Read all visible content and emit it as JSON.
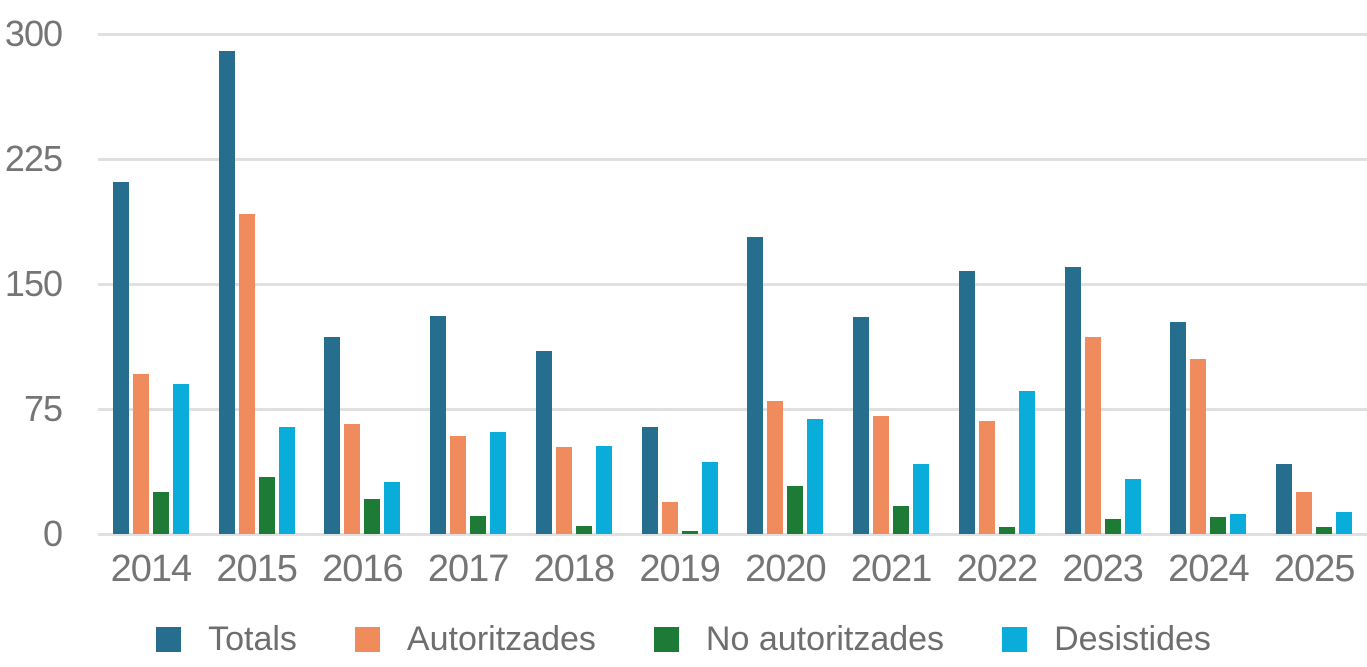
{
  "chart_data": {
    "type": "bar",
    "title": "",
    "xlabel": "",
    "ylabel": "",
    "categories": [
      "2014",
      "2015",
      "2016",
      "2017",
      "2018",
      "2019",
      "2020",
      "2021",
      "2022",
      "2023",
      "2024",
      "2025"
    ],
    "series": [
      {
        "name": "Totals",
        "color": "#256E8D",
        "values": [
          211,
          290,
          118,
          131,
          110,
          64,
          178,
          130,
          158,
          160,
          127,
          42
        ]
      },
      {
        "name": "Autoritzades",
        "color": "#EF8B5C",
        "values": [
          96,
          192,
          66,
          59,
          52,
          19,
          80,
          71,
          68,
          118,
          105,
          25
        ]
      },
      {
        "name": "No autoritzades",
        "color": "#1E7B36",
        "values": [
          25,
          34,
          21,
          11,
          5,
          2,
          29,
          17,
          4,
          9,
          10,
          4
        ]
      },
      {
        "name": "Desistides",
        "color": "#0AACD9",
        "values": [
          90,
          64,
          31,
          61,
          53,
          43,
          69,
          42,
          86,
          33,
          12,
          13
        ]
      }
    ],
    "ylim": [
      0,
      300
    ],
    "yticks": [
      0,
      75,
      150,
      225,
      300
    ],
    "grid": "horizontal-only",
    "legend_position": "bottom"
  },
  "styles": {
    "background": "#FFFFFF",
    "grid_color": "#E0E0E0",
    "axis_text_color": "#757575",
    "legend_text_color": "#6E6E6E"
  }
}
